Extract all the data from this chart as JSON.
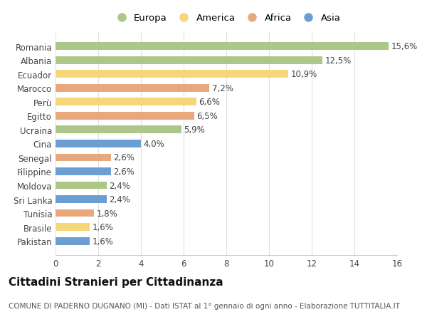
{
  "countries": [
    "Romania",
    "Albania",
    "Ecuador",
    "Marocco",
    "Perù",
    "Egitto",
    "Ucraina",
    "Cina",
    "Senegal",
    "Filippine",
    "Moldova",
    "Sri Lanka",
    "Tunisia",
    "Brasile",
    "Pakistan"
  ],
  "values": [
    15.6,
    12.5,
    10.9,
    7.2,
    6.6,
    6.5,
    5.9,
    4.0,
    2.6,
    2.6,
    2.4,
    2.4,
    1.8,
    1.6,
    1.6
  ],
  "categories": [
    "Europa",
    "Europa",
    "America",
    "Africa",
    "America",
    "Africa",
    "Europa",
    "Asia",
    "Africa",
    "Asia",
    "Europa",
    "Asia",
    "Africa",
    "America",
    "Asia"
  ],
  "colors": {
    "Europa": "#adc788",
    "America": "#f5d77a",
    "Africa": "#e8a87c",
    "Asia": "#6b9fd4"
  },
  "labels": [
    "15,6%",
    "12,5%",
    "10,9%",
    "7,2%",
    "6,6%",
    "6,5%",
    "5,9%",
    "4,0%",
    "2,6%",
    "2,6%",
    "2,4%",
    "2,4%",
    "1,8%",
    "1,6%",
    "1,6%"
  ],
  "title": "Cittadini Stranieri per Cittadinanza",
  "subtitle": "COMUNE DI PADERNO DUGNANO (MI) - Dati ISTAT al 1° gennaio di ogni anno - Elaborazione TUTTITALIA.IT",
  "xlim": [
    0,
    16
  ],
  "xticks": [
    0,
    2,
    4,
    6,
    8,
    10,
    12,
    14,
    16
  ],
  "background_color": "#ffffff",
  "plot_bg_color": "#ffffff",
  "grid_color": "#e0e0e0",
  "title_fontsize": 11,
  "subtitle_fontsize": 7.5,
  "tick_fontsize": 8.5,
  "label_fontsize": 8.5,
  "legend_fontsize": 9.5
}
